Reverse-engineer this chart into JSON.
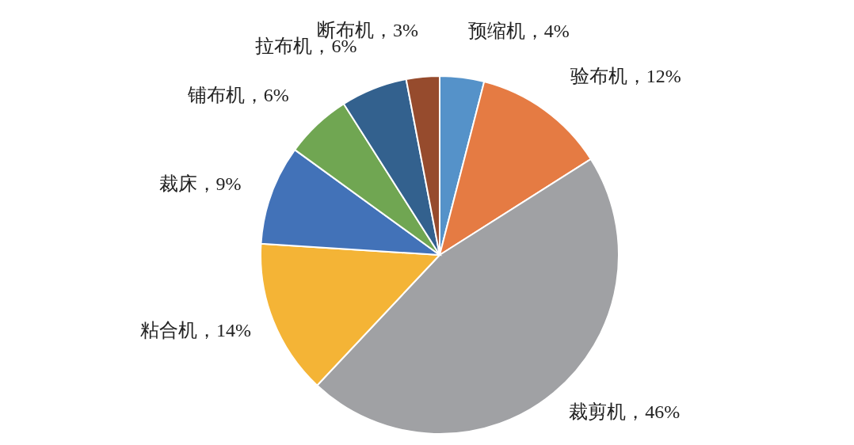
{
  "chart_data": {
    "type": "pie",
    "categories": [
      "预缩机",
      "验布机",
      "裁剪机",
      "粘合机",
      "裁床",
      "铺布机",
      "拉布机",
      "断布机"
    ],
    "values": [
      4,
      12,
      46,
      14,
      9,
      6,
      6,
      3
    ],
    "colors": [
      "#5592c9",
      "#e57b43",
      "#a0a1a4",
      "#f4b436",
      "#4272b8",
      "#70a652",
      "#33618e",
      "#964b2d"
    ],
    "value_labels": [
      "，4%",
      "，12%",
      "，46%",
      "，14%",
      "，9%",
      "，6%",
      "，6%",
      "，3%"
    ]
  }
}
